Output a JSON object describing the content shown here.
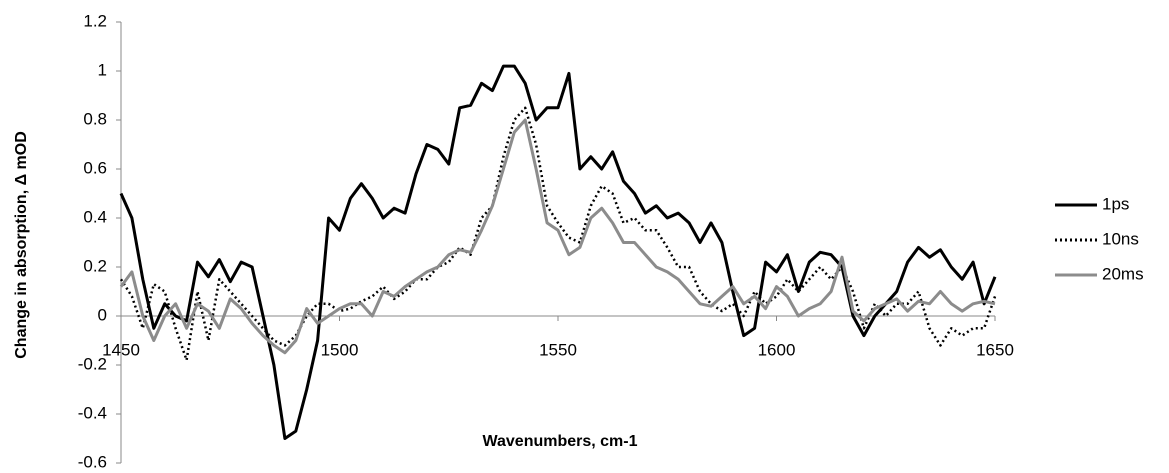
{
  "chart_data": {
    "type": "line",
    "xlabel": "Wavenumbers, cm-1",
    "ylabel": "Change in absorption, Δ mOD",
    "x": [
      1450,
      1452.5,
      1455,
      1457.5,
      1460,
      1462.5,
      1465,
      1467.5,
      1470,
      1472.5,
      1475,
      1477.5,
      1480,
      1482.5,
      1485,
      1487.5,
      1490,
      1492.5,
      1495,
      1497.5,
      1500,
      1502.5,
      1505,
      1507.5,
      1510,
      1512.5,
      1515,
      1517.5,
      1520,
      1522.5,
      1525,
      1527.5,
      1530,
      1532.5,
      1535,
      1537.5,
      1540,
      1542.5,
      1545,
      1547.5,
      1550,
      1552.5,
      1555,
      1557.5,
      1560,
      1562.5,
      1565,
      1567.5,
      1570,
      1572.5,
      1575,
      1577.5,
      1580,
      1582.5,
      1585,
      1587.5,
      1590,
      1592.5,
      1595,
      1597.5,
      1600,
      1602.5,
      1605,
      1607.5,
      1610,
      1612.5,
      1615,
      1617.5,
      1620,
      1622.5,
      1625,
      1627.5,
      1630,
      1632.5,
      1635,
      1637.5,
      1640,
      1642.5,
      1645,
      1647.5,
      1650
    ],
    "series": [
      {
        "name": "1ps",
        "color": "#000000",
        "linestyle": "solid",
        "values": [
          0.5,
          0.4,
          0.15,
          -0.05,
          0.05,
          0.0,
          -0.02,
          0.22,
          0.16,
          0.23,
          0.14,
          0.22,
          0.2,
          0.0,
          -0.2,
          -0.5,
          -0.47,
          -0.3,
          -0.1,
          0.4,
          0.35,
          0.48,
          0.54,
          0.48,
          0.4,
          0.44,
          0.42,
          0.58,
          0.7,
          0.68,
          0.62,
          0.85,
          0.86,
          0.95,
          0.92,
          1.02,
          1.02,
          0.95,
          0.8,
          0.85,
          0.85,
          0.99,
          0.6,
          0.65,
          0.6,
          0.67,
          0.55,
          0.5,
          0.42,
          0.45,
          0.4,
          0.42,
          0.38,
          0.3,
          0.38,
          0.3,
          0.1,
          -0.08,
          -0.05,
          0.22,
          0.18,
          0.25,
          0.1,
          0.22,
          0.26,
          0.25,
          0.2,
          0.0,
          -0.08,
          0.0,
          0.05,
          0.1,
          0.22,
          0.28,
          0.24,
          0.27,
          0.2,
          0.15,
          0.22,
          0.05,
          0.16
        ]
      },
      {
        "name": "10ns",
        "color": "#000000",
        "linestyle": "dotted",
        "values": [
          0.15,
          0.08,
          -0.05,
          0.13,
          0.1,
          -0.05,
          -0.18,
          0.1,
          -0.1,
          0.15,
          0.1,
          0.05,
          0.0,
          -0.05,
          -0.1,
          -0.12,
          -0.08,
          0.0,
          0.05,
          0.05,
          0.02,
          0.03,
          0.06,
          0.08,
          0.12,
          0.07,
          0.1,
          0.15,
          0.15,
          0.2,
          0.22,
          0.28,
          0.25,
          0.4,
          0.45,
          0.65,
          0.8,
          0.85,
          0.7,
          0.45,
          0.38,
          0.32,
          0.3,
          0.45,
          0.53,
          0.5,
          0.38,
          0.4,
          0.35,
          0.35,
          0.28,
          0.2,
          0.2,
          0.1,
          0.05,
          0.02,
          0.05,
          0.0,
          0.1,
          0.05,
          0.08,
          0.15,
          0.1,
          0.15,
          0.2,
          0.15,
          0.2,
          0.1,
          -0.05,
          0.05,
          0.0,
          0.05,
          0.05,
          0.1,
          -0.05,
          -0.12,
          -0.05,
          -0.08,
          -0.05,
          -0.05,
          0.08
        ]
      },
      {
        "name": "20ms",
        "color": "#8c8c8c",
        "linestyle": "solid",
        "values": [
          0.12,
          0.18,
          0.0,
          -0.1,
          0.0,
          0.05,
          -0.05,
          0.05,
          0.02,
          -0.05,
          0.07,
          0.03,
          -0.03,
          -0.08,
          -0.12,
          -0.15,
          -0.1,
          0.03,
          -0.03,
          0.0,
          0.03,
          0.05,
          0.05,
          0.0,
          0.1,
          0.08,
          0.12,
          0.15,
          0.18,
          0.2,
          0.25,
          0.27,
          0.26,
          0.35,
          0.45,
          0.6,
          0.75,
          0.8,
          0.6,
          0.38,
          0.35,
          0.25,
          0.28,
          0.4,
          0.44,
          0.38,
          0.3,
          0.3,
          0.25,
          0.2,
          0.18,
          0.15,
          0.1,
          0.05,
          0.04,
          0.08,
          0.12,
          0.05,
          0.08,
          0.03,
          0.12,
          0.08,
          0.0,
          0.03,
          0.05,
          0.1,
          0.24,
          0.02,
          -0.02,
          0.03,
          0.05,
          0.07,
          0.02,
          0.06,
          0.05,
          0.1,
          0.05,
          0.02,
          0.05,
          0.06,
          0.05
        ]
      }
    ],
    "xlim": [
      1450,
      1650
    ],
    "xticks": [
      1450,
      1500,
      1550,
      1600,
      1650
    ],
    "ylim": [
      -0.6,
      1.2
    ],
    "yticks": [
      -0.6,
      -0.4,
      -0.2,
      0,
      0.2,
      0.4,
      0.6,
      0.8,
      1,
      1.2
    ],
    "grid": false,
    "legend": "right"
  }
}
